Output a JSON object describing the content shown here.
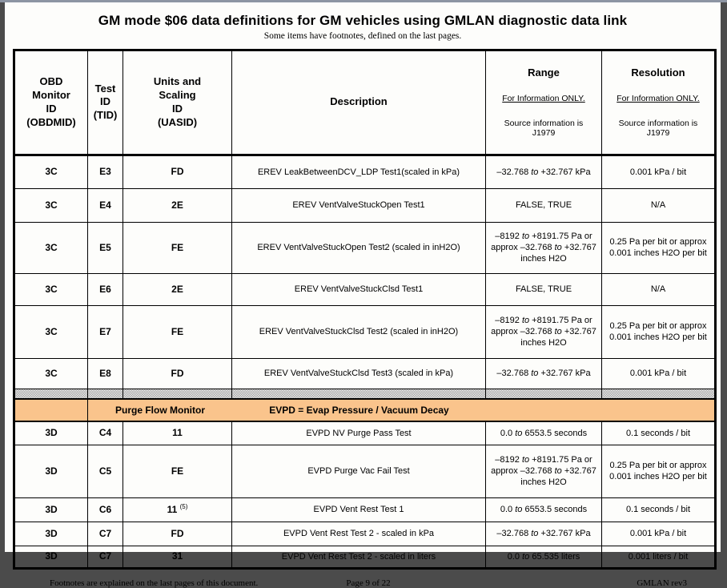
{
  "page": {
    "title": "GM mode $06 data definitions for GM vehicles using GMLAN diagnostic data link",
    "subtitle": "Some items have footnotes, defined on the last pages."
  },
  "table": {
    "headers": {
      "obdmid": "OBD\nMonitor\nID\n(OBDMID)",
      "tid": "Test\nID\n(TID)",
      "uasid": "Units and\nScaling\nID\n(UASID)",
      "description": "Description",
      "range": {
        "title": "Range",
        "note": "For Information ONLY.",
        "source": "Source information is J1979"
      },
      "resolution": {
        "title": "Resolution",
        "note": "For Information ONLY.",
        "source": "Source information is J1979"
      }
    },
    "section": {
      "label": "Purge Flow Monitor",
      "description": "EVPD = Evap Pressure / Vacuum Decay"
    },
    "rows": [
      {
        "obdmid": "3C",
        "tid": "E3",
        "uasid": "FD",
        "description": "EREV LeakBetweenDCV_LDP Test1(scaled in kPa)",
        "range": "–32.768 to +32.767 kPa",
        "resolution": "0.001 kPa / bit"
      },
      {
        "obdmid": "3C",
        "tid": "E4",
        "uasid": "2E",
        "description": "EREV VentValveStuckOpen Test1",
        "range": "FALSE, TRUE",
        "resolution": "N/A"
      },
      {
        "obdmid": "3C",
        "tid": "E5",
        "uasid": "FE",
        "description": "EREV VentValveStuckOpen Test2 (scaled in inH2O)",
        "range": "–8192 to +8191.75 Pa or approx –32.768 to +32.767 inches H2O",
        "resolution": "0.25 Pa per bit or approx 0.001 inches H2O per bit"
      },
      {
        "obdmid": "3C",
        "tid": "E6",
        "uasid": "2E",
        "description": "EREV VentValveStuckClsd Test1",
        "range": "FALSE, TRUE",
        "resolution": "N/A"
      },
      {
        "obdmid": "3C",
        "tid": "E7",
        "uasid": "FE",
        "description": "EREV VentValveStuckClsd Test2 (scaled in inH2O)",
        "range": "–8192 to +8191.75 Pa or approx –32.768 to +32.767 inches H2O",
        "resolution": "0.25 Pa per bit or approx 0.001 inches H2O per bit"
      },
      {
        "obdmid": "3C",
        "tid": "E8",
        "uasid": "FD",
        "description": "EREV VentValveStuckClsd Test3 (scaled in kPa)",
        "range": "–32.768 to +32.767 kPa",
        "resolution": "0.001 kPa / bit"
      },
      {
        "type": "separator"
      },
      {
        "type": "section"
      },
      {
        "obdmid": "3D",
        "tid": "C4",
        "uasid": "11",
        "description": "EVPD NV Purge Pass Test",
        "range": "0.0 to 6553.5 seconds",
        "resolution": "0.1 seconds / bit"
      },
      {
        "obdmid": "3D",
        "tid": "C5",
        "uasid": "FE",
        "description": "EVPD Purge Vac Fail Test",
        "range": "–8192 to +8191.75 Pa or approx –32.768 to +32.767 inches H2O",
        "resolution": "0.25 Pa per bit or approx 0.001 inches H2O per bit"
      },
      {
        "obdmid": "3D",
        "tid": "C6",
        "uasid": "11",
        "uasid_note": "(5)",
        "description": "EVPD Vent Rest Test 1",
        "range": "0.0 to 6553.5 seconds",
        "resolution": "0.1 seconds / bit"
      },
      {
        "obdmid": "3D",
        "tid": "C7",
        "uasid": "FD",
        "description": "EVPD Vent Rest Test 2 - scaled in kPa",
        "range": "–32.768 to +32.767 kPa",
        "resolution": "0.001 kPa / bit"
      },
      {
        "obdmid": "3D",
        "tid": "C7",
        "uasid": "31",
        "description": "EVPD Vent Rest Test 2 - scaled in liters",
        "range": "0.0 to 65.535 liters",
        "resolution": "0.001 liters / bit"
      }
    ]
  },
  "footer": {
    "left": "Footnotes are explained on the last pages of this document.",
    "center": "Page 9 of 22",
    "right": "GMLAN rev3"
  },
  "colors": {
    "section_bg": "#FAC48C",
    "hatch_dark": "#ABABAB",
    "hatch_light": "#E4E4E4"
  }
}
